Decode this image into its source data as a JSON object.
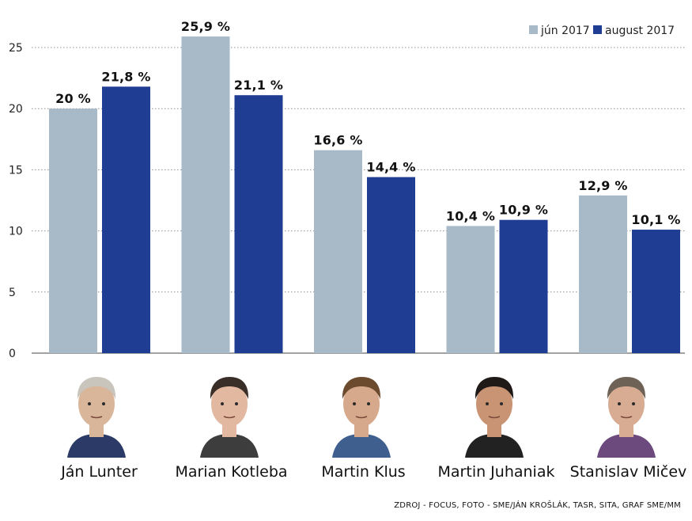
{
  "chart_data": {
    "type": "bar",
    "categories": [
      "Ján Lunter",
      "Marian Kotleba",
      "Martin Klus",
      "Martin Juhaniak",
      "Stanislav Mičev"
    ],
    "series": [
      {
        "name": "jún 2017",
        "color": "#a8b9c8",
        "values": [
          20,
          25.9,
          16.6,
          10.4,
          12.9
        ],
        "labels": [
          "20 %",
          "25,9 %",
          "16,6 %",
          "10,4 %",
          "12,9 %"
        ]
      },
      {
        "name": "august 2017",
        "color": "#1f3d93",
        "values": [
          21.8,
          21.1,
          14.4,
          10.9,
          10.1
        ],
        "labels": [
          "21,8 %",
          "21,1 %",
          "14,4 %",
          "10,9 %",
          "10,1 %"
        ]
      }
    ],
    "y_ticks": [
      "0",
      "5",
      "10",
      "15",
      "20",
      "25"
    ],
    "ylim": [
      0,
      27
    ],
    "grid": true,
    "legend_position": "top-right"
  },
  "photos": [
    {
      "icon": "portrait-icon",
      "skin": "#d9b59a",
      "hair": "#c9c4bc",
      "shirt": "#2b3a66"
    },
    {
      "icon": "portrait-icon",
      "skin": "#e2b8a0",
      "hair": "#3a2e28",
      "shirt": "#3d3d3d"
    },
    {
      "icon": "portrait-icon",
      "skin": "#d7a98c",
      "hair": "#6b4a2e",
      "shirt": "#3f5f8f"
    },
    {
      "icon": "portrait-icon",
      "skin": "#c99474",
      "hair": "#1f1a17",
      "shirt": "#222222"
    },
    {
      "icon": "portrait-icon",
      "skin": "#d8ac92",
      "hair": "#6e6256",
      "shirt": "#6c4a7e"
    }
  ],
  "source": "ZDROJ - FOCUS, FOTO - SME/JÁN KROŠLÁK, TASR, SITA, GRAF SME/MM"
}
